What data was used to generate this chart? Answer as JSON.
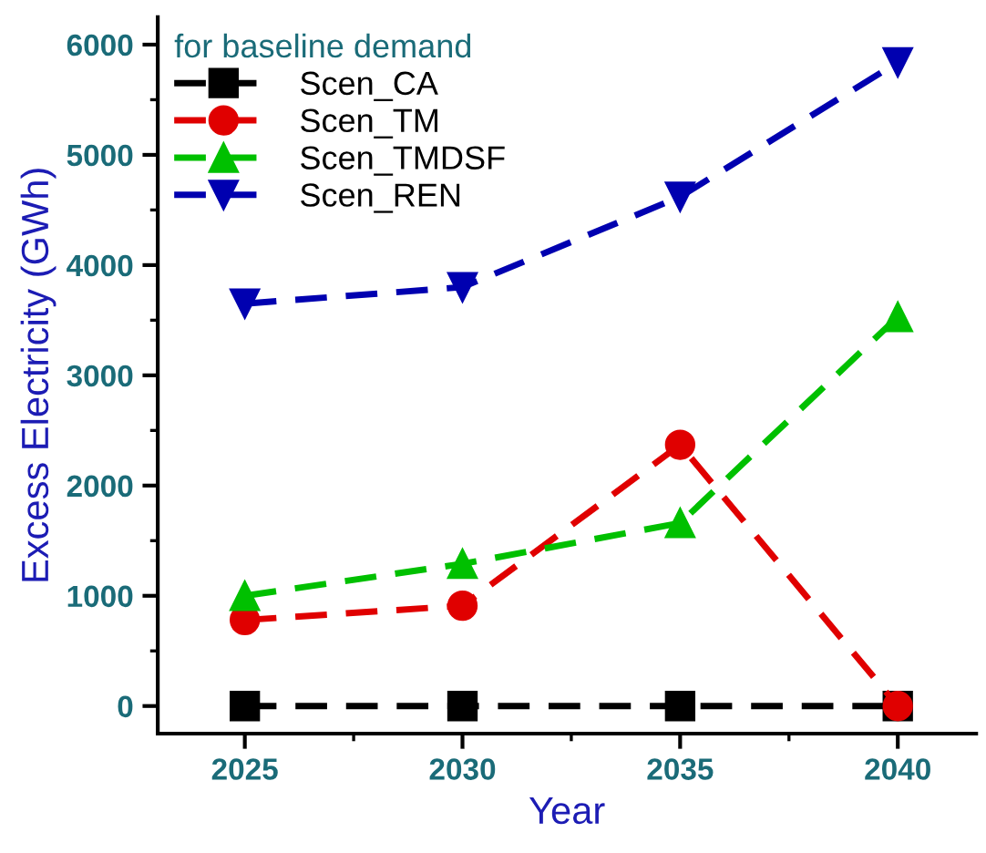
{
  "chart_data": {
    "type": "line",
    "xlabel": "Year",
    "ylabel": "Excess Electricity (GWh)",
    "legend_title": "for baseline demand",
    "x": [
      2025,
      2030,
      2035,
      2040
    ],
    "series": [
      {
        "name": "Scen_CA",
        "color": "#000000",
        "marker": "square",
        "values": [
          0,
          0,
          0,
          0
        ]
      },
      {
        "name": "Scen_TM",
        "color": "#e00000",
        "marker": "circle",
        "values": [
          780,
          910,
          2370,
          0
        ]
      },
      {
        "name": "Scen_TMDSF",
        "color": "#00c000",
        "marker": "triangle",
        "values": [
          1000,
          1290,
          1660,
          3530
        ]
      },
      {
        "name": "Scen_REN",
        "color": "#0000b0",
        "marker": "triangle_down",
        "values": [
          3650,
          3800,
          4620,
          5840
        ]
      }
    ],
    "xlim": [
      2023,
      2041.8
    ],
    "xticks": [
      2025,
      2030,
      2035,
      2040
    ],
    "ylim": [
      -250,
      6250
    ],
    "yticks": [
      0,
      1000,
      2000,
      3000,
      4000,
      5000,
      6000
    ],
    "line_style": "dashed",
    "grid": false,
    "legend": "top left"
  }
}
